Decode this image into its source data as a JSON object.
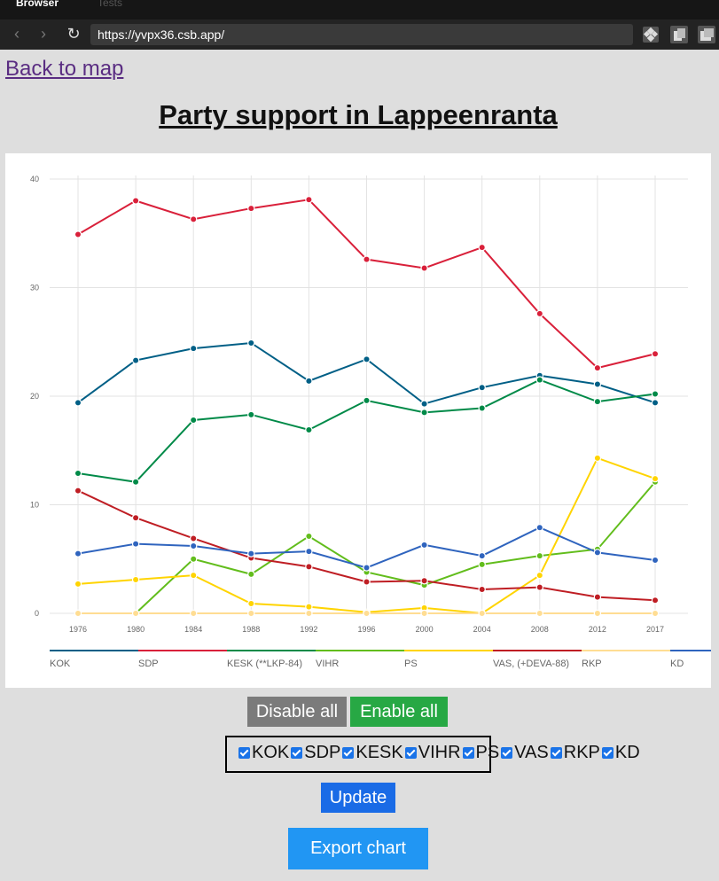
{
  "browser": {
    "tabs": [
      "Browser",
      "Tests"
    ],
    "url": "https://yvpx36.csb.app/"
  },
  "page": {
    "back_link": "Back to map",
    "title": "Party support in Lappeenranta"
  },
  "buttons": {
    "disable_all": "Disable all",
    "enable_all": "Enable all",
    "update": "Update",
    "export": "Export chart"
  },
  "parties": [
    {
      "label": "KOK",
      "checked": true
    },
    {
      "label": "SDP",
      "checked": true
    },
    {
      "label": "KESK",
      "checked": true
    },
    {
      "label": "VIHR",
      "checked": true
    },
    {
      "label": "PS",
      "checked": true
    },
    {
      "label": "VAS",
      "checked": true
    },
    {
      "label": "RKP",
      "checked": true
    },
    {
      "label": "KD",
      "checked": true
    }
  ],
  "chart_data": {
    "type": "line",
    "x": [
      "1976",
      "1980",
      "1984",
      "1988",
      "1992",
      "1996",
      "2000",
      "2004",
      "2008",
      "2012",
      "2017"
    ],
    "ylim": [
      0,
      40
    ],
    "yticks": [
      0,
      10,
      20,
      30,
      40
    ],
    "grid": true,
    "legend_position": "bottom",
    "series": [
      {
        "name": "KOK",
        "color": "#005f86",
        "values": [
          19.4,
          23.3,
          24.4,
          24.9,
          21.4,
          23.4,
          19.3,
          20.8,
          21.9,
          21.1,
          19.4
        ]
      },
      {
        "name": "SDP",
        "color": "#d9203a",
        "values": [
          34.9,
          38.0,
          36.3,
          37.3,
          38.1,
          32.6,
          31.8,
          33.7,
          27.6,
          22.6,
          23.9
        ]
      },
      {
        "name": "KESK (**LKP-84)",
        "color": "#008a48",
        "values": [
          12.9,
          12.1,
          17.8,
          18.3,
          16.9,
          19.6,
          18.5,
          18.9,
          21.5,
          19.5,
          20.2
        ]
      },
      {
        "name": "VIHR",
        "color": "#62bd1c",
        "values": [
          0,
          0,
          5.0,
          3.6,
          7.1,
          3.8,
          2.6,
          4.5,
          5.3,
          5.9,
          12.1
        ]
      },
      {
        "name": "PS",
        "color": "#ffd400",
        "values": [
          2.7,
          3.1,
          3.5,
          0.9,
          0.6,
          0.1,
          0.5,
          0,
          3.5,
          14.3,
          12.4
        ]
      },
      {
        "name": "VAS, (+DEVA-88)",
        "color": "#bf1e24",
        "values": [
          11.3,
          8.8,
          6.9,
          5.1,
          4.3,
          2.9,
          3.0,
          2.2,
          2.4,
          1.5,
          1.2
        ]
      },
      {
        "name": "RKP",
        "color": "#ffdd93",
        "values": [
          0,
          0,
          0,
          0,
          0,
          0,
          0,
          0,
          0,
          0,
          0
        ]
      },
      {
        "name": "KD",
        "color": "#2f64be",
        "values": [
          5.5,
          6.4,
          6.2,
          5.5,
          5.7,
          4.2,
          6.3,
          5.3,
          7.9,
          5.6,
          4.9
        ]
      }
    ]
  }
}
